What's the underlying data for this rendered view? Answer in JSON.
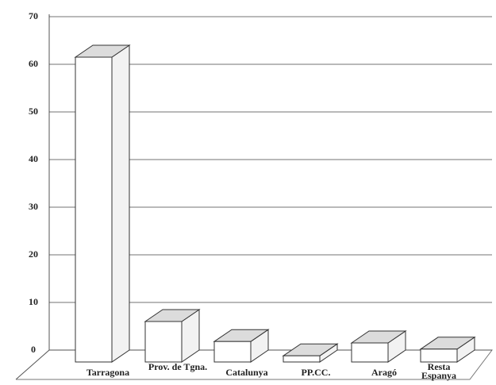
{
  "chart_data": {
    "type": "bar3d",
    "categories": [
      "Tarragona",
      "Prov. de Tgna.",
      "Catalunya",
      "PP.CC.",
      "Aragó",
      "Resta Espanya"
    ],
    "values": [
      64,
      8.5,
      4.3,
      1.3,
      4,
      2.7
    ],
    "color": "#ffffff",
    "top_color": "#dcdcdc",
    "ylim": [
      0,
      70
    ],
    "yticks": [
      0,
      10,
      20,
      30,
      40,
      50,
      60,
      70
    ],
    "grid": true
  }
}
